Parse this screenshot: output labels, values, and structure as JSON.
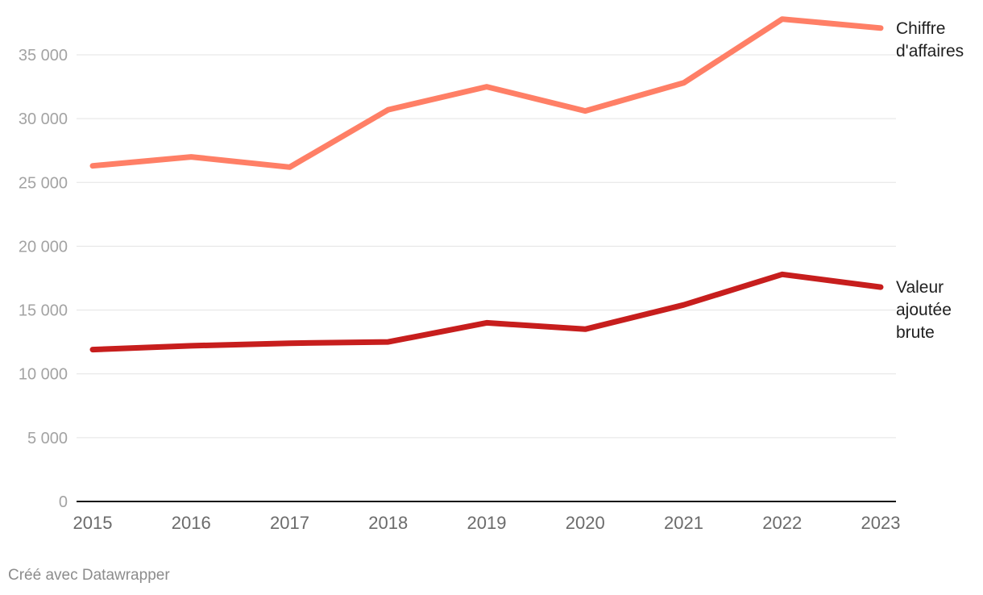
{
  "chart_data": {
    "type": "line",
    "title": "",
    "xlabel": "",
    "ylabel": "",
    "categories": [
      "2015",
      "2016",
      "2017",
      "2018",
      "2019",
      "2020",
      "2021",
      "2022",
      "2023"
    ],
    "ylim": [
      0,
      38000
    ],
    "yticks": [
      0,
      5000,
      10000,
      15000,
      20000,
      25000,
      30000,
      35000
    ],
    "ytick_labels": [
      "0",
      "5 000",
      "10 000",
      "15 000",
      "20 000",
      "25 000",
      "30 000",
      "35 000"
    ],
    "grid": true,
    "series": [
      {
        "name": "Chiffre d'affaires",
        "label_lines": [
          "Chiffre",
          "d'affaires"
        ],
        "color": "#ff7f66",
        "values": [
          26300,
          27000,
          26200,
          30700,
          32500,
          30600,
          32800,
          37800,
          37100
        ]
      },
      {
        "name": "Valeur ajoutée brute",
        "label_lines": [
          "Valeur",
          "ajoutée",
          "brute"
        ],
        "color": "#c71e1d",
        "values": [
          11900,
          12200,
          12400,
          12500,
          14000,
          13500,
          15400,
          17800,
          16800
        ]
      }
    ]
  },
  "footer": {
    "credit": "Créé avec Datawrapper"
  }
}
